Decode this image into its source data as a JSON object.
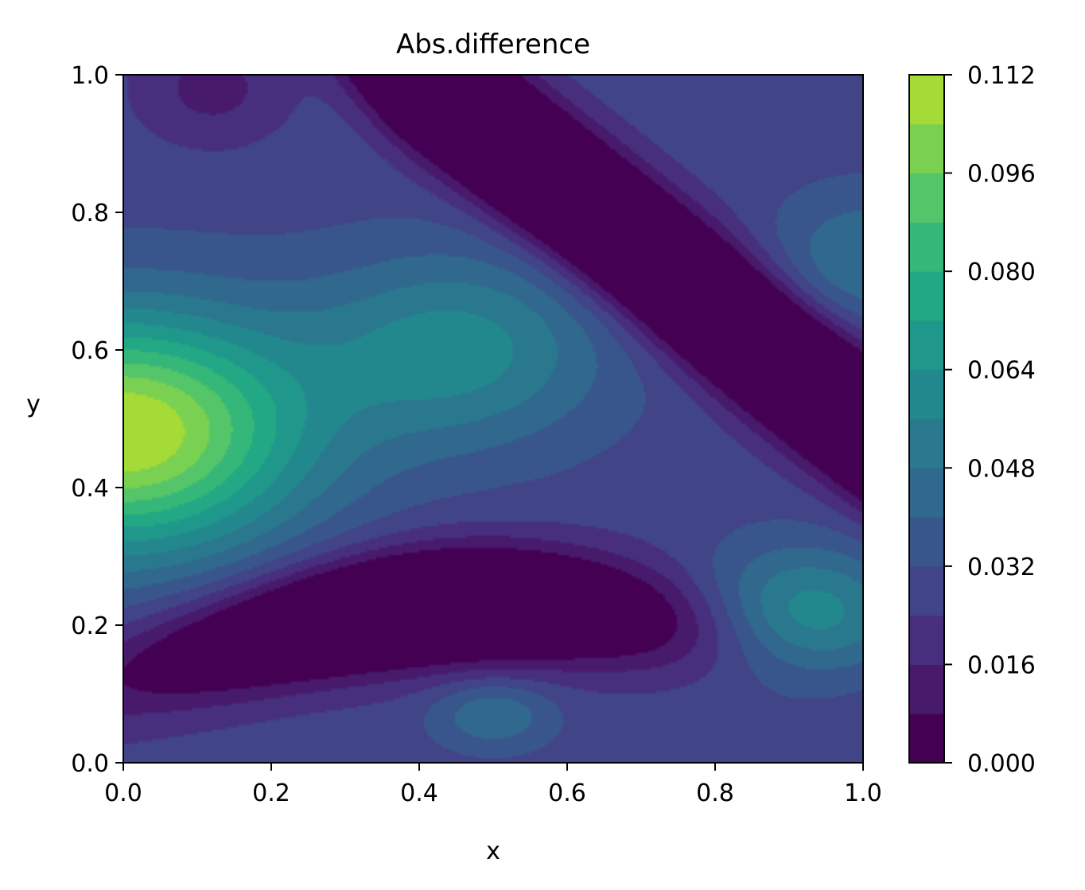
{
  "chart_data": {
    "type": "heatmap",
    "subtype": "filled-contour",
    "title": "Abs.difference",
    "xlabel": "x",
    "ylabel": "y",
    "xlim": [
      0.0,
      1.0
    ],
    "ylim": [
      0.0,
      1.0
    ],
    "x_ticks": [
      "0.0",
      "0.2",
      "0.4",
      "0.6",
      "0.8",
      "1.0"
    ],
    "y_ticks": [
      "0.0",
      "0.2",
      "0.4",
      "0.6",
      "0.8",
      "1.0"
    ],
    "colormap": "viridis",
    "levels": [
      0.0,
      0.008,
      0.016,
      0.024,
      0.032,
      0.04,
      0.048,
      0.056,
      0.064,
      0.072,
      0.08,
      0.088,
      0.096,
      0.104,
      0.112
    ],
    "level_colors": [
      "#440154",
      "#481a6c",
      "#472f7d",
      "#414487",
      "#39568c",
      "#31688e",
      "#2a788e",
      "#23888e",
      "#1f988b",
      "#22a884",
      "#35b779",
      "#54c568",
      "#7ad151",
      "#a5db36",
      "#d2e21b"
    ],
    "colorbar": {
      "range": [
        0.0,
        0.112
      ],
      "tick_labels": [
        "0.000",
        "0.016",
        "0.032",
        "0.048",
        "0.064",
        "0.080",
        "0.096",
        "0.112"
      ]
    },
    "features": [
      {
        "kind": "maximum",
        "x": 0.01,
        "y": 0.48,
        "value": 0.108
      },
      {
        "kind": "local-maximum",
        "x": 0.45,
        "y": 0.6,
        "value": 0.068
      },
      {
        "kind": "local-maximum",
        "x": 0.9,
        "y": 0.22,
        "value": 0.06
      },
      {
        "kind": "local-maximum",
        "x": 0.98,
        "y": 0.73,
        "value": 0.042
      },
      {
        "kind": "minimum-band",
        "from": [
          0.55,
          1.0
        ],
        "to": [
          1.0,
          0.47
        ],
        "value": 0.0
      },
      {
        "kind": "minimum-band",
        "from": [
          0.0,
          0.1
        ],
        "to": [
          0.8,
          0.2
        ],
        "value": 0.0
      }
    ]
  }
}
